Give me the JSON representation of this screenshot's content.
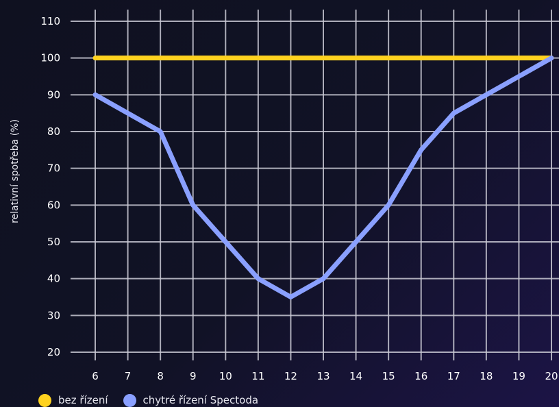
{
  "chart_data": {
    "type": "line",
    "title": "",
    "xlabel": "",
    "ylabel": "relativní spotřeba (%)",
    "x": [
      6,
      7,
      8,
      9,
      10,
      11,
      12,
      13,
      14,
      15,
      16,
      17,
      18,
      19,
      20
    ],
    "xlim": [
      6,
      20
    ],
    "ylim": [
      20,
      110
    ],
    "yticks": [
      20,
      30,
      40,
      50,
      60,
      70,
      80,
      90,
      100,
      110
    ],
    "grid": true,
    "legend_position": "bottom-left",
    "series": [
      {
        "name": "bez řízení",
        "color": "#ffd21f",
        "values": [
          100,
          100,
          100,
          100,
          100,
          100,
          100,
          100,
          100,
          100,
          100,
          100,
          100,
          100,
          100
        ]
      },
      {
        "name": "chytré řízení Spectoda",
        "color": "#8aa0ff",
        "values": [
          90,
          85,
          80,
          60,
          50,
          40,
          35,
          40,
          50,
          60,
          75,
          85,
          90,
          95,
          100
        ]
      }
    ]
  }
}
